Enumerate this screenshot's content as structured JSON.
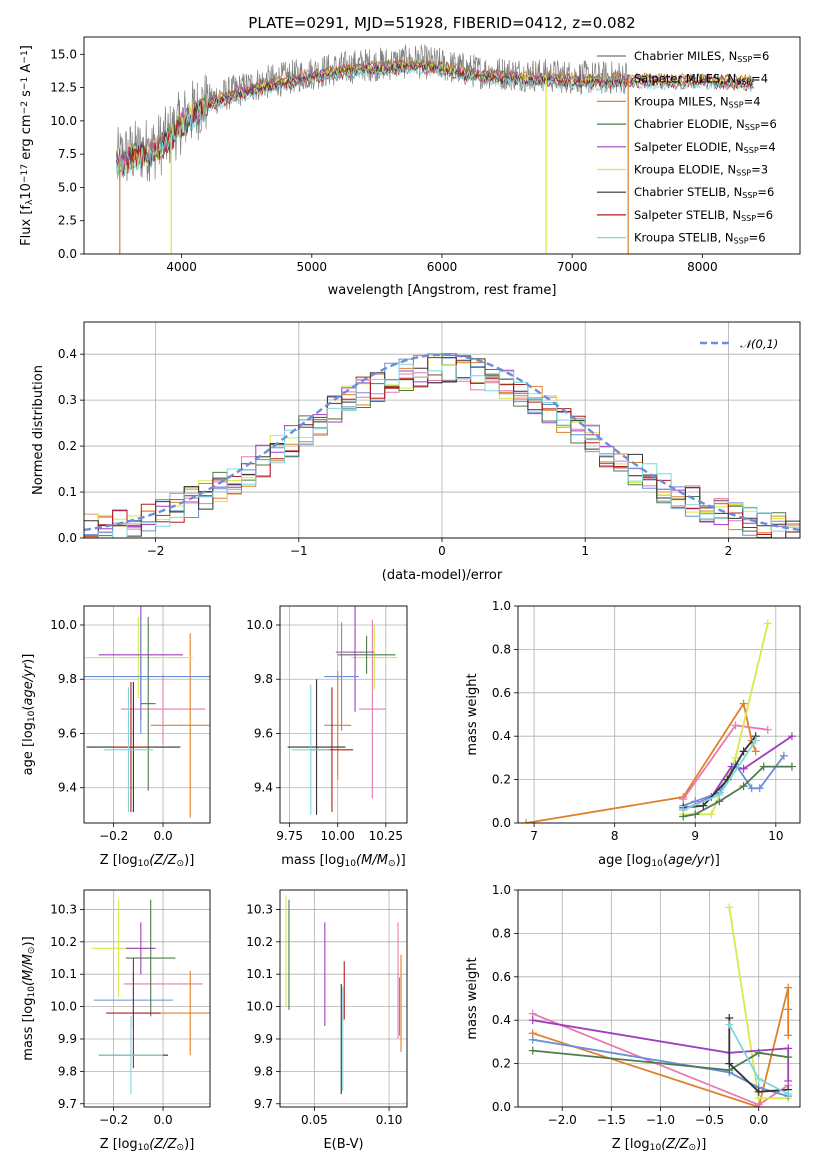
{
  "chart_data": [
    {
      "id": "spectrum",
      "type": "line",
      "title": "PLATE=0291, MJD=51928, FIBERID=0412, z=0.082",
      "xlabel": "wavelength [Angstrom, rest frame]",
      "ylabel_parts": {
        "a": "Flux [f",
        "b": "λ",
        "c": "10",
        "d": "−17",
        "e": " erg cm",
        "f": "−2",
        "g": " s",
        "h": "−1",
        "i": " A",
        "j": "−1",
        "k": "]"
      },
      "xlim": [
        3250,
        8750
      ],
      "ylim": [
        0,
        16.3
      ],
      "xticks": [
        "4000",
        "5000",
        "6000",
        "7000",
        "8000"
      ],
      "yticks": [
        "0.0",
        "2.5",
        "5.0",
        "7.5",
        "10.0",
        "12.5",
        "15.0"
      ],
      "legend": [
        {
          "prefix": "Chabrier MILES, N",
          "sub": "SSP",
          "suffix": "=6",
          "color": "#777777"
        },
        {
          "prefix": "Salpeter MILES, N",
          "sub": "SSP",
          "suffix": "=4",
          "color": "#9b9b9b"
        },
        {
          "prefix": "Kroupa MILES, N",
          "sub": "SSP",
          "suffix": "=4",
          "color": "#e0812a"
        },
        {
          "prefix": "Chabrier ELODIE, N",
          "sub": "SSP",
          "suffix": "=6",
          "color": "#4f7a4f"
        },
        {
          "prefix": "Salpeter ELODIE, N",
          "sub": "SSP",
          "suffix": "=4",
          "color": "#a23dbd"
        },
        {
          "prefix": "Kroupa ELODIE, N",
          "sub": "SSP",
          "suffix": "=3",
          "color": "#d9e84a"
        },
        {
          "prefix": "Chabrier STELIB, N",
          "sub": "SSP",
          "suffix": "=6",
          "color": "#333333"
        },
        {
          "prefix": "Salpeter STELIB, N",
          "sub": "SSP",
          "suffix": "=6",
          "color": "#b51b1b"
        },
        {
          "prefix": "Kroupa STELIB, N",
          "sub": "SSP",
          "suffix": "=6",
          "color": "#7fd6dc"
        }
      ],
      "continuum": [
        [
          3500,
          7.0
        ],
        [
          3600,
          7.5
        ],
        [
          3700,
          7.8
        ],
        [
          3800,
          8.0
        ],
        [
          3900,
          8.8
        ],
        [
          4000,
          10.0
        ],
        [
          4100,
          10.8
        ],
        [
          4200,
          11.5
        ],
        [
          4400,
          12.2
        ],
        [
          4600,
          12.8
        ],
        [
          4800,
          13.2
        ],
        [
          5000,
          13.6
        ],
        [
          5200,
          13.9
        ],
        [
          5400,
          14.2
        ],
        [
          5600,
          14.3
        ],
        [
          5800,
          14.5
        ],
        [
          6000,
          14.2
        ],
        [
          6200,
          13.8
        ],
        [
          6400,
          13.6
        ],
        [
          6600,
          13.5
        ],
        [
          6800,
          13.4
        ],
        [
          7000,
          13.3
        ],
        [
          7200,
          13.2
        ],
        [
          7400,
          13.3
        ],
        [
          7600,
          13.3
        ],
        [
          7800,
          13.2
        ],
        [
          8000,
          13.3
        ],
        [
          8200,
          13.2
        ],
        [
          8400,
          13.1
        ]
      ]
    },
    {
      "id": "residuals",
      "type": "histogram",
      "xlabel": "(data-model)/error",
      "ylabel": "Normed distribution",
      "xlim": [
        -2.5,
        2.5
      ],
      "ylim": [
        0,
        0.47
      ],
      "xticks": [
        "−2",
        "−1",
        "0",
        "1",
        "2"
      ],
      "yticks": [
        "0.0",
        "0.1",
        "0.2",
        "0.3",
        "0.4"
      ],
      "grid": true,
      "legend_label": "𝒩(0,1)",
      "legend_color": "#6a8fd8",
      "bin_width": 0.1
    },
    {
      "id": "age-vs-Z",
      "type": "errorbar",
      "xlabel_parts": {
        "a": "Z [log",
        "b": "10",
        "c": "(Z/Z",
        "d": "⊙",
        "e": ")]"
      },
      "ylabel_parts": {
        "a": "age  [log",
        "b": "10",
        "c": "(age/yr)]"
      },
      "xlim": [
        -0.32,
        0.19
      ],
      "ylim": [
        9.27,
        10.07
      ],
      "xticks": [
        "−0.2",
        "0.0"
      ],
      "yticks": [
        "9.4",
        "9.6",
        "9.8",
        "10.0"
      ],
      "grid": true,
      "points": [
        {
          "x": 0.0,
          "y": 9.69,
          "xerr": 0.17,
          "yerr": 0.13,
          "color": "#e879b2"
        },
        {
          "x": 0.11,
          "y": 9.63,
          "xerr": 0.16,
          "yerr": 0.34,
          "color": "#e0812a"
        },
        {
          "x": -0.1,
          "y": 9.88,
          "xerr": 0.22,
          "yerr": 0.15,
          "color": "#d9e84a"
        },
        {
          "x": -0.09,
          "y": 9.89,
          "xerr": 0.17,
          "yerr": 0.24,
          "color": "#a23dbd"
        },
        {
          "x": -0.09,
          "y": 9.81,
          "xerr": 0.29,
          "yerr": 0.21,
          "color": "#6a8fd8"
        },
        {
          "x": -0.06,
          "y": 9.71,
          "xerr": 0.03,
          "yerr": 0.32,
          "color": "#4f7a4f"
        },
        {
          "x": -0.12,
          "y": 9.55,
          "xerr": 0.19,
          "yerr": 0.24,
          "color": "#333333"
        },
        {
          "x": -0.13,
          "y": 9.55,
          "xerr": 0.07,
          "yerr": 0.24,
          "color": "#b51b1b"
        },
        {
          "x": -0.14,
          "y": 9.54,
          "xerr": 0.1,
          "yerr": 0.23,
          "color": "#7fd6dc"
        }
      ]
    },
    {
      "id": "age-vs-mass",
      "type": "errorbar",
      "xlabel_parts": {
        "a": "mass [log",
        "b": "10",
        "c": "(M/M",
        "d": "⊙",
        "e": ")]"
      },
      "xlim": [
        9.7,
        10.36
      ],
      "ylim": [
        9.27,
        10.07
      ],
      "xticks": [
        "9.75",
        "10.00",
        "10.25"
      ],
      "yticks": [
        "9.4",
        "9.6",
        "9.8",
        "10.0"
      ],
      "grid": true,
      "points": [
        {
          "x": 10.18,
          "y": 9.69,
          "xerr": 0.07,
          "yerr": 0.33,
          "color": "#e879b2"
        },
        {
          "x": 10.0,
          "y": 9.63,
          "xerr": 0.07,
          "yerr": 0.2,
          "color": "#e0812a"
        },
        {
          "x": 10.19,
          "y": 9.88,
          "xerr": 0.12,
          "yerr": 0.12,
          "color": "#d9e84a"
        },
        {
          "x": 10.09,
          "y": 9.9,
          "xerr": 0.1,
          "yerr": 0.22,
          "color": "#a23dbd"
        },
        {
          "x": 10.02,
          "y": 9.81,
          "xerr": 0.09,
          "yerr": 0.2,
          "color": "#6a8fd8"
        },
        {
          "x": 10.15,
          "y": 9.89,
          "xerr": 0.15,
          "yerr": 0.07,
          "color": "#4f7a4f"
        },
        {
          "x": 9.89,
          "y": 9.55,
          "xerr": 0.15,
          "yerr": 0.25,
          "color": "#333333"
        },
        {
          "x": 9.97,
          "y": 9.54,
          "xerr": 0.11,
          "yerr": 0.23,
          "color": "#b51b1b"
        },
        {
          "x": 9.86,
          "y": 9.54,
          "xerr": 0.1,
          "yerr": 0.24,
          "color": "#7fd6dc"
        }
      ]
    },
    {
      "id": "massweight-vs-age",
      "type": "line",
      "xlabel_parts": {
        "a": "age  [log",
        "b": "10",
        "c": "(age/yr)]"
      },
      "ylabel": "mass weight",
      "xlim": [
        6.8,
        10.3
      ],
      "ylim": [
        0,
        1.0
      ],
      "xticks": [
        "7",
        "8",
        "9",
        "10"
      ],
      "yticks": [
        "0.0",
        "0.2",
        "0.4",
        "0.6",
        "0.8",
        "1.0"
      ],
      "grid": true,
      "series": [
        {
          "color": "#e0812a",
          "x": [
            6.9,
            8.85,
            9.6,
            9.7,
            9.75
          ],
          "y": [
            0.0,
            0.12,
            0.55,
            0.38,
            0.33
          ]
        },
        {
          "color": "#e879b2",
          "x": [
            8.85,
            9.5,
            9.9
          ],
          "y": [
            0.11,
            0.45,
            0.43
          ]
        },
        {
          "color": "#d9e84a",
          "x": [
            8.85,
            9.2,
            9.5,
            9.9
          ],
          "y": [
            0.04,
            0.04,
            0.3,
            0.92
          ]
        },
        {
          "color": "#a23dbd",
          "x": [
            8.85,
            9.2,
            9.45,
            9.6,
            10.2
          ],
          "y": [
            0.06,
            0.12,
            0.26,
            0.25,
            0.4
          ]
        },
        {
          "color": "#6a8fd8",
          "x": [
            8.85,
            9.0,
            9.3,
            9.5,
            9.7,
            9.8,
            10.1
          ],
          "y": [
            0.08,
            0.1,
            0.14,
            0.27,
            0.16,
            0.16,
            0.31
          ]
        },
        {
          "color": "#4f7a4f",
          "x": [
            8.85,
            9.0,
            9.3,
            9.6,
            9.85,
            10.2
          ],
          "y": [
            0.03,
            0.04,
            0.1,
            0.17,
            0.26,
            0.26
          ]
        },
        {
          "color": "#333333",
          "x": [
            8.85,
            9.1,
            9.4,
            9.6,
            9.75
          ],
          "y": [
            0.07,
            0.08,
            0.2,
            0.33,
            0.4
          ]
        },
        {
          "color": "#7fd6dc",
          "x": [
            8.85,
            9.3,
            9.75
          ],
          "y": [
            0.06,
            0.13,
            0.38
          ]
        }
      ]
    },
    {
      "id": "mass-vs-Z",
      "type": "errorbar",
      "xlabel_parts": {
        "a": "Z [log",
        "b": "10",
        "c": "(Z/Z",
        "d": "⊙",
        "e": ")]"
      },
      "ylabel_parts": {
        "a": "mass [log",
        "b": "10",
        "c": "(M/M",
        "d": "⊙",
        "e": ")]"
      },
      "xlim": [
        -0.32,
        0.19
      ],
      "ylim": [
        9.69,
        10.36
      ],
      "xticks": [
        "−0.2",
        "0.0"
      ],
      "yticks": [
        "9.7",
        "9.8",
        "9.9",
        "10.0",
        "10.1",
        "10.2",
        "10.3"
      ],
      "grid": true,
      "points": [
        {
          "x": 0.0,
          "y": 10.07,
          "xerr": 0.16,
          "yerr": 0.0,
          "color": "#e879b2"
        },
        {
          "x": 0.11,
          "y": 9.98,
          "xerr": 0.18,
          "yerr": 0.13,
          "color": "#e0812a"
        },
        {
          "x": -0.18,
          "y": 10.18,
          "xerr": 0.11,
          "yerr": 0.15,
          "color": "#d9e84a"
        },
        {
          "x": -0.09,
          "y": 10.18,
          "xerr": 0.06,
          "yerr": 0.08,
          "color": "#a23dbd"
        },
        {
          "x": -0.12,
          "y": 10.02,
          "xerr": 0.16,
          "yerr": 0.09,
          "color": "#6a8fd8"
        },
        {
          "x": -0.05,
          "y": 10.15,
          "xerr": 0.1,
          "yerr": 0.18,
          "color": "#4f7a4f"
        },
        {
          "x": -0.12,
          "y": 9.85,
          "xerr": 0.14,
          "yerr": 0.0,
          "color": "#333333"
        },
        {
          "x": -0.12,
          "y": 9.98,
          "xerr": 0.11,
          "yerr": 0.17,
          "color": "#b51b1b"
        },
        {
          "x": -0.13,
          "y": 9.85,
          "xerr": 0.13,
          "yerr": 0.12,
          "color": "#7fd6dc"
        }
      ]
    },
    {
      "id": "mass-vs-EBV",
      "type": "errorbar",
      "xlabel": "E(B-V)",
      "xlim": [
        0.027,
        0.112
      ],
      "ylim": [
        9.69,
        10.36
      ],
      "xticks": [
        "0.05",
        "0.10"
      ],
      "yticks": [
        "9.7",
        "9.8",
        "9.9",
        "10.0",
        "10.1",
        "10.2",
        "10.3"
      ],
      "grid": true,
      "points": [
        {
          "x": 0.031,
          "y": 10.17,
          "xerr": 0.0,
          "yerr": 0.17,
          "color": "#d9e84a"
        },
        {
          "x": 0.033,
          "y": 10.16,
          "xerr": 0.0,
          "yerr": 0.17,
          "color": "#4f7a4f"
        },
        {
          "x": 0.057,
          "y": 10.1,
          "xerr": 0.0,
          "yerr": 0.16,
          "color": "#a23dbd"
        },
        {
          "x": 0.068,
          "y": 9.9,
          "xerr": 0.0,
          "yerr": 0.17,
          "color": "#333333"
        },
        {
          "x": 0.069,
          "y": 9.9,
          "xerr": 0.0,
          "yerr": 0.16,
          "color": "#7fd6dc"
        },
        {
          "x": 0.07,
          "y": 10.05,
          "xerr": 0.0,
          "yerr": 0.09,
          "color": "#b51b1b"
        },
        {
          "x": 0.106,
          "y": 10.08,
          "xerr": 0.0,
          "yerr": 0.18,
          "color": "#e879b2"
        },
        {
          "x": 0.108,
          "y": 10.01,
          "xerr": 0.0,
          "yerr": 0.15,
          "color": "#e0812a"
        },
        {
          "x": 0.107,
          "y": 10.0,
          "xerr": 0.0,
          "yerr": 0.09,
          "color": "#6a8fd8"
        }
      ]
    },
    {
      "id": "massweight-vs-Z",
      "type": "line",
      "xlabel_parts": {
        "a": "Z [log",
        "b": "10",
        "c": "(Z/Z",
        "d": "⊙",
        "e": ")]"
      },
      "ylabel": "mass weight",
      "xlim": [
        -2.45,
        0.42
      ],
      "ylim": [
        0,
        1.0
      ],
      "xticks": [
        "−2.0",
        "−1.5",
        "−1.0",
        "−0.5",
        "0.0"
      ],
      "yticks": [
        "0.0",
        "0.2",
        "0.4",
        "0.6",
        "0.8",
        "1.0"
      ],
      "grid": true,
      "series": [
        {
          "color": "#e0812a",
          "x": [
            -2.3,
            0.0,
            0.3,
            0.3,
            0.3
          ],
          "y": [
            0.34,
            0.0,
            0.55,
            0.45,
            0.33
          ]
        },
        {
          "color": "#e879b2",
          "x": [
            -2.3,
            0.0,
            0.3
          ],
          "y": [
            0.43,
            0.01,
            0.1
          ]
        },
        {
          "color": "#d9e84a",
          "x": [
            -0.3,
            0.0,
            0.3
          ],
          "y": [
            0.92,
            0.04,
            0.04
          ]
        },
        {
          "color": "#a23dbd",
          "x": [
            -2.3,
            -0.3,
            0.3,
            0.3
          ],
          "y": [
            0.4,
            0.25,
            0.27,
            0.12
          ]
        },
        {
          "color": "#6a8fd8",
          "x": [
            -2.3,
            -0.3,
            0.0,
            0.3
          ],
          "y": [
            0.31,
            0.16,
            0.09,
            0.05
          ]
        },
        {
          "color": "#4f7a4f",
          "x": [
            -2.3,
            -0.3,
            0.0,
            0.3
          ],
          "y": [
            0.26,
            0.17,
            0.25,
            0.23
          ]
        },
        {
          "color": "#333333",
          "x": [
            -0.3,
            -0.3,
            0.0,
            0.3
          ],
          "y": [
            0.41,
            0.2,
            0.07,
            0.08
          ]
        },
        {
          "color": "#7fd6dc",
          "x": [
            -0.3,
            0.0,
            0.3
          ],
          "y": [
            0.38,
            0.13,
            0.06
          ]
        }
      ]
    }
  ]
}
